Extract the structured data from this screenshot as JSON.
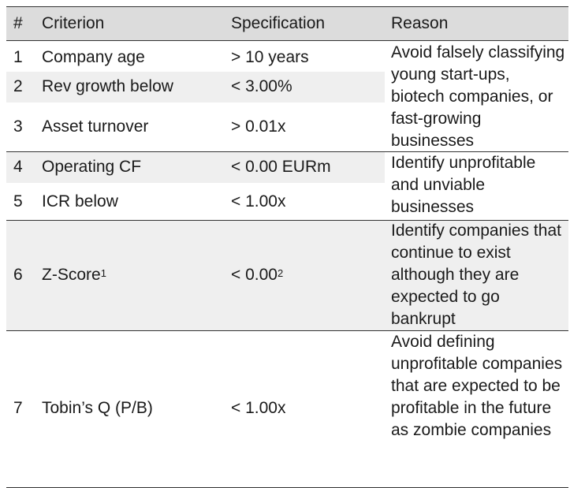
{
  "table": {
    "headers": {
      "num": "#",
      "criterion": "Criterion",
      "specification": "Specification",
      "reason": "Reason"
    },
    "rows": [
      {
        "num": "1",
        "criterion": "Company age",
        "specification": "> 10 years"
      },
      {
        "num": "2",
        "criterion": "Rev growth below",
        "specification": "< 3.00%"
      },
      {
        "num": "3",
        "criterion": "Asset turnover",
        "specification": "> 0.01x"
      },
      {
        "num": "4",
        "criterion": "Operating CF",
        "specification": "< 0.00 EURm"
      },
      {
        "num": "5",
        "criterion": "ICR below",
        "specification": "< 1.00x"
      },
      {
        "num": "6",
        "criterion": "Z-Score",
        "criterion_sup": "1",
        "specification": "< 0.00",
        "specification_sup": "2"
      },
      {
        "num": "7",
        "criterion": "Tobin’s Q (P/B)",
        "specification": "< 1.00x"
      }
    ],
    "reasons": [
      "Avoid falsely classifying young start-ups, biotech companies, or fast-growing businesses",
      "Identify unprofitable and unviable businesses",
      "Identify companies that continue to exist although they are expected to go bankrupt",
      "Avoid defining unprofitable companies that are expected to be profitable in the future as zombie companies"
    ]
  }
}
